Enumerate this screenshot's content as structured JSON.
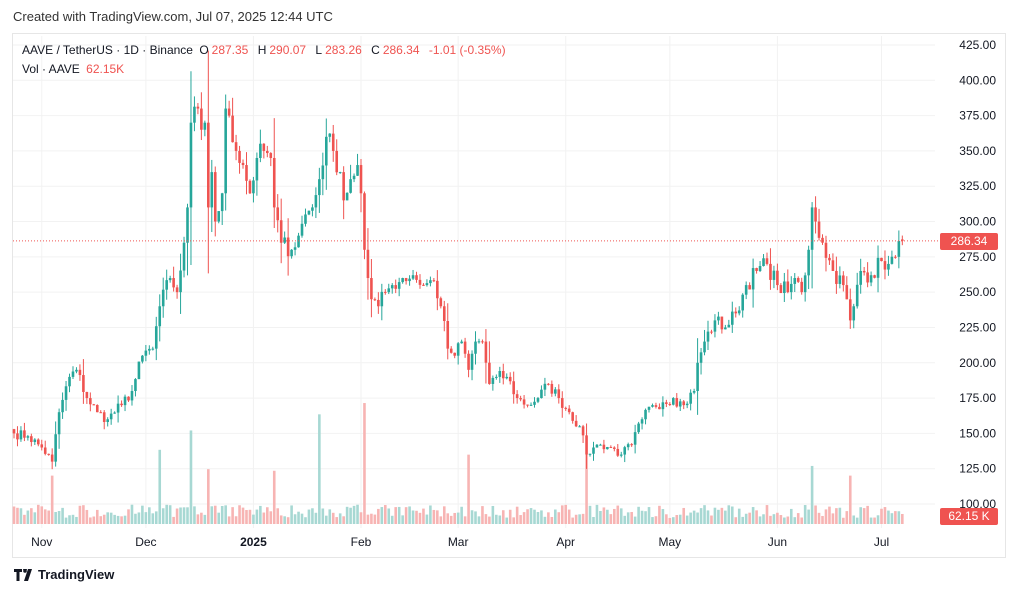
{
  "header": {
    "created": "Created with TradingView.com, Jul 07, 2025 12:44 UTC"
  },
  "legend": {
    "symbol": "AAVE / TetherUS · 1D · Binance",
    "o_label": "O",
    "o": "287.35",
    "h_label": "H",
    "h": "290.07",
    "l_label": "L",
    "l": "283.26",
    "c_label": "C",
    "c": "286.34",
    "change": "-1.01 (-0.35%)",
    "vol_label": "Vol · AAVE",
    "vol": "62.15K"
  },
  "price_tag": "286.34",
  "volume_tag": "62.15 K",
  "brand": "TradingView",
  "colors": {
    "up": "#26a69a",
    "down": "#ef5350",
    "up_vol": "#a7d8d3",
    "down_vol": "#f7b4b3",
    "last_line": "#ef5350"
  },
  "chart_data": {
    "type": "candlestick",
    "title": "AAVE / TetherUS · 1D · Binance",
    "start_date": "2024-10-24",
    "end_date": "2025-07-07",
    "ylim": [
      95,
      425
    ],
    "yticks": [
      "425.00",
      "400.00",
      "375.00",
      "350.00",
      "325.00",
      "300.00",
      "275.00",
      "250.00",
      "225.00",
      "200.00",
      "175.00",
      "150.00",
      "125.00",
      "100.00"
    ],
    "ytick_values": [
      425,
      400,
      375,
      350,
      325,
      300,
      275,
      250,
      225,
      200,
      175,
      150,
      125,
      100
    ],
    "xticks": [
      {
        "label": "Nov",
        "date": "2024-11-01",
        "bold": false
      },
      {
        "label": "Dec",
        "date": "2024-12-01",
        "bold": false
      },
      {
        "label": "2025",
        "date": "2025-01-01",
        "bold": true
      },
      {
        "label": "Feb",
        "date": "2025-02-01",
        "bold": false
      },
      {
        "label": "Mar",
        "date": "2025-03-01",
        "bold": false
      },
      {
        "label": "Apr",
        "date": "2025-04-01",
        "bold": false
      },
      {
        "label": "May",
        "date": "2025-05-01",
        "bold": false
      },
      {
        "label": "Jun",
        "date": "2025-06-01",
        "bold": false
      },
      {
        "label": "Jul",
        "date": "2025-07-01",
        "bold": false
      }
    ],
    "close_keypoints_day_price": [
      [
        0,
        150
      ],
      [
        4,
        148
      ],
      [
        8,
        140
      ],
      [
        11,
        130
      ],
      [
        13,
        165
      ],
      [
        16,
        190
      ],
      [
        18,
        195
      ],
      [
        21,
        175
      ],
      [
        24,
        165
      ],
      [
        27,
        160
      ],
      [
        31,
        170
      ],
      [
        34,
        180
      ],
      [
        37,
        205
      ],
      [
        40,
        210
      ],
      [
        42,
        240
      ],
      [
        45,
        260
      ],
      [
        47,
        250
      ],
      [
        49,
        285
      ],
      [
        50,
        310
      ],
      [
        51,
        370
      ],
      [
        53,
        380
      ],
      [
        54,
        365
      ],
      [
        55,
        370
      ],
      [
        56,
        310
      ],
      [
        57,
        335
      ],
      [
        58,
        300
      ],
      [
        60,
        320
      ],
      [
        61,
        380
      ],
      [
        62,
        375
      ],
      [
        64,
        350
      ],
      [
        66,
        340
      ],
      [
        68,
        320
      ],
      [
        70,
        345
      ],
      [
        72,
        350
      ],
      [
        74,
        345
      ],
      [
        75,
        310
      ],
      [
        77,
        285
      ],
      [
        80,
        280
      ],
      [
        82,
        290
      ],
      [
        84,
        305
      ],
      [
        86,
        310
      ],
      [
        88,
        330
      ],
      [
        90,
        360
      ],
      [
        92,
        350
      ],
      [
        94,
        335
      ],
      [
        95,
        315
      ],
      [
        97,
        330
      ],
      [
        99,
        340
      ],
      [
        100,
        320
      ],
      [
        101,
        280
      ],
      [
        102,
        260
      ],
      [
        103,
        245
      ],
      [
        105,
        240
      ],
      [
        107,
        250
      ],
      [
        109,
        255
      ],
      [
        112,
        260
      ],
      [
        115,
        262
      ],
      [
        118,
        255
      ],
      [
        121,
        258
      ],
      [
        123,
        240
      ],
      [
        125,
        210
      ],
      [
        127,
        205
      ],
      [
        129,
        215
      ],
      [
        131,
        195
      ],
      [
        133,
        215
      ],
      [
        135,
        215
      ],
      [
        137,
        185
      ],
      [
        139,
        190
      ],
      [
        142,
        190
      ],
      [
        145,
        175
      ],
      [
        148,
        170
      ],
      [
        151,
        175
      ],
      [
        154,
        185
      ],
      [
        157,
        175
      ],
      [
        160,
        165
      ],
      [
        163,
        155
      ],
      [
        165,
        135
      ],
      [
        167,
        140
      ],
      [
        169,
        142
      ],
      [
        172,
        140
      ],
      [
        175,
        135
      ],
      [
        178,
        142
      ],
      [
        181,
        160
      ],
      [
        184,
        170
      ],
      [
        187,
        172
      ],
      [
        190,
        175
      ],
      [
        193,
        170
      ],
      [
        196,
        180
      ],
      [
        197,
        200
      ],
      [
        199,
        215
      ],
      [
        202,
        230
      ],
      [
        205,
        225
      ],
      [
        208,
        235
      ],
      [
        211,
        255
      ],
      [
        214,
        265
      ],
      [
        217,
        270
      ],
      [
        220,
        255
      ],
      [
        223,
        250
      ],
      [
        225,
        260
      ],
      [
        227,
        250
      ],
      [
        229,
        280
      ],
      [
        230,
        310
      ],
      [
        231,
        300
      ],
      [
        233,
        285
      ],
      [
        236,
        265
      ],
      [
        239,
        255
      ],
      [
        241,
        230
      ],
      [
        242,
        240
      ],
      [
        244,
        265
      ],
      [
        247,
        262
      ],
      [
        250,
        272
      ],
      [
        252,
        270
      ],
      [
        254,
        275
      ],
      [
        256,
        286.34
      ]
    ],
    "last_candle": {
      "open": 287.35,
      "high": 290.07,
      "low": 283.26,
      "close": 286.34,
      "change": -1.01,
      "change_pct": -0.35,
      "volume_k": 62.15
    },
    "volume_base_k": 75,
    "volume_spikes_day_k": [
      [
        11,
        300
      ],
      [
        42,
        460
      ],
      [
        51,
        580
      ],
      [
        56,
        340
      ],
      [
        75,
        330
      ],
      [
        88,
        680
      ],
      [
        101,
        750
      ],
      [
        131,
        430
      ],
      [
        165,
        430
      ],
      [
        230,
        360
      ],
      [
        241,
        300
      ]
    ]
  }
}
